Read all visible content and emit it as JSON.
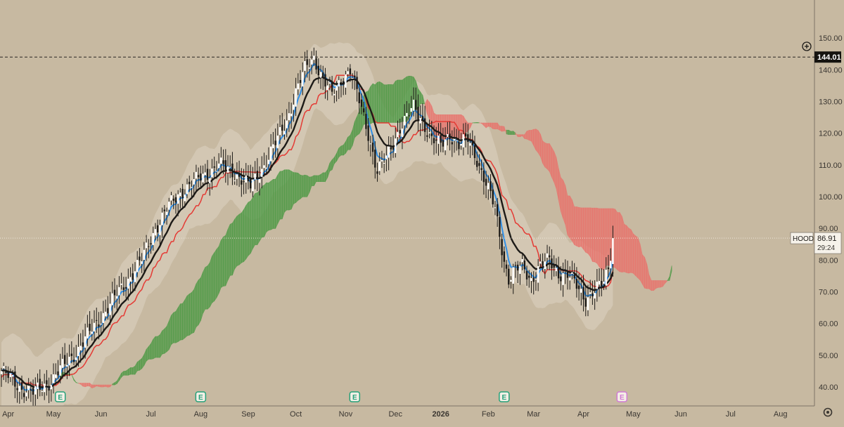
{
  "colors": {
    "background": "#c7b9a1",
    "envelope": "#ddd3c3",
    "cloud_bull": "#4e9a45",
    "cloud_bear": "#e8736c",
    "blue_line": "#2f8fe6",
    "red_line": "#e43b35",
    "black_line": "#1c1a17",
    "candle": "#ffffff",
    "candle_wick": "#1c1a17",
    "axis_text": "#3a3631",
    "earnings_badge": "#25a27a",
    "earnings_badge_future": "#d17ad6"
  },
  "chart_data": {
    "type": "candlestick",
    "symbol": "HOOD",
    "x_tick_labels": [
      "Apr",
      "May",
      "Jun",
      "Jul",
      "Aug",
      "Sep",
      "Oct",
      "Nov",
      "Dec",
      "2026",
      "Feb",
      "Mar",
      "Apr",
      "May",
      "Jun",
      "Jul",
      "Aug"
    ],
    "y_tick_labels": [
      "40.00",
      "50.00",
      "60.00",
      "70.00",
      "80.00",
      "90.00",
      "100.00",
      "110.00",
      "120.00",
      "130.00",
      "140.00",
      "150.00"
    ],
    "ylim": [
      34,
      162
    ],
    "x_tick_index": [
      3,
      23,
      44,
      66,
      88,
      109,
      130,
      152,
      174,
      194,
      215,
      235,
      257,
      279,
      300,
      322,
      344
    ],
    "price_line": {
      "value": 144.01,
      "label": "144.01"
    },
    "last_price": {
      "value": 86.91,
      "label": "86.91",
      "countdown": "29:24"
    },
    "earnings_markers": [
      {
        "label": "E",
        "index": 26,
        "future": false
      },
      {
        "label": "E",
        "index": 88,
        "future": false
      },
      {
        "label": "E",
        "index": 156,
        "future": false
      },
      {
        "label": "E",
        "index": 222,
        "future": false
      },
      {
        "label": "E",
        "index": 274,
        "future": true
      }
    ],
    "close_path": [
      [
        0,
        45
      ],
      [
        8,
        40
      ],
      [
        14,
        38
      ],
      [
        22,
        42
      ],
      [
        28,
        47
      ],
      [
        34,
        52
      ],
      [
        40,
        58
      ],
      [
        48,
        66
      ],
      [
        54,
        72
      ],
      [
        62,
        80
      ],
      [
        68,
        90
      ],
      [
        74,
        97
      ],
      [
        80,
        102
      ],
      [
        88,
        106
      ],
      [
        96,
        110
      ],
      [
        104,
        107
      ],
      [
        110,
        103
      ],
      [
        116,
        110
      ],
      [
        122,
        118
      ],
      [
        126,
        124
      ],
      [
        130,
        133
      ],
      [
        134,
        140
      ],
      [
        138,
        144
      ],
      [
        142,
        137
      ],
      [
        146,
        132
      ],
      [
        150,
        137
      ],
      [
        154,
        140
      ],
      [
        158,
        130
      ],
      [
        162,
        120
      ],
      [
        166,
        108
      ],
      [
        170,
        112
      ],
      [
        176,
        122
      ],
      [
        182,
        128
      ],
      [
        186,
        124
      ],
      [
        190,
        118
      ],
      [
        194,
        116
      ],
      [
        198,
        120
      ],
      [
        202,
        116
      ],
      [
        206,
        118
      ],
      [
        210,
        112
      ],
      [
        214,
        104
      ],
      [
        218,
        96
      ],
      [
        220,
        88
      ],
      [
        222,
        80
      ],
      [
        224,
        74
      ],
      [
        226,
        76
      ],
      [
        230,
        78
      ],
      [
        234,
        74
      ],
      [
        238,
        78
      ],
      [
        242,
        80
      ],
      [
        246,
        76
      ],
      [
        250,
        75
      ],
      [
        254,
        72
      ],
      [
        258,
        68
      ],
      [
        262,
        70
      ],
      [
        266,
        73
      ],
      [
        268,
        78
      ],
      [
        270,
        86.91
      ]
    ]
  }
}
